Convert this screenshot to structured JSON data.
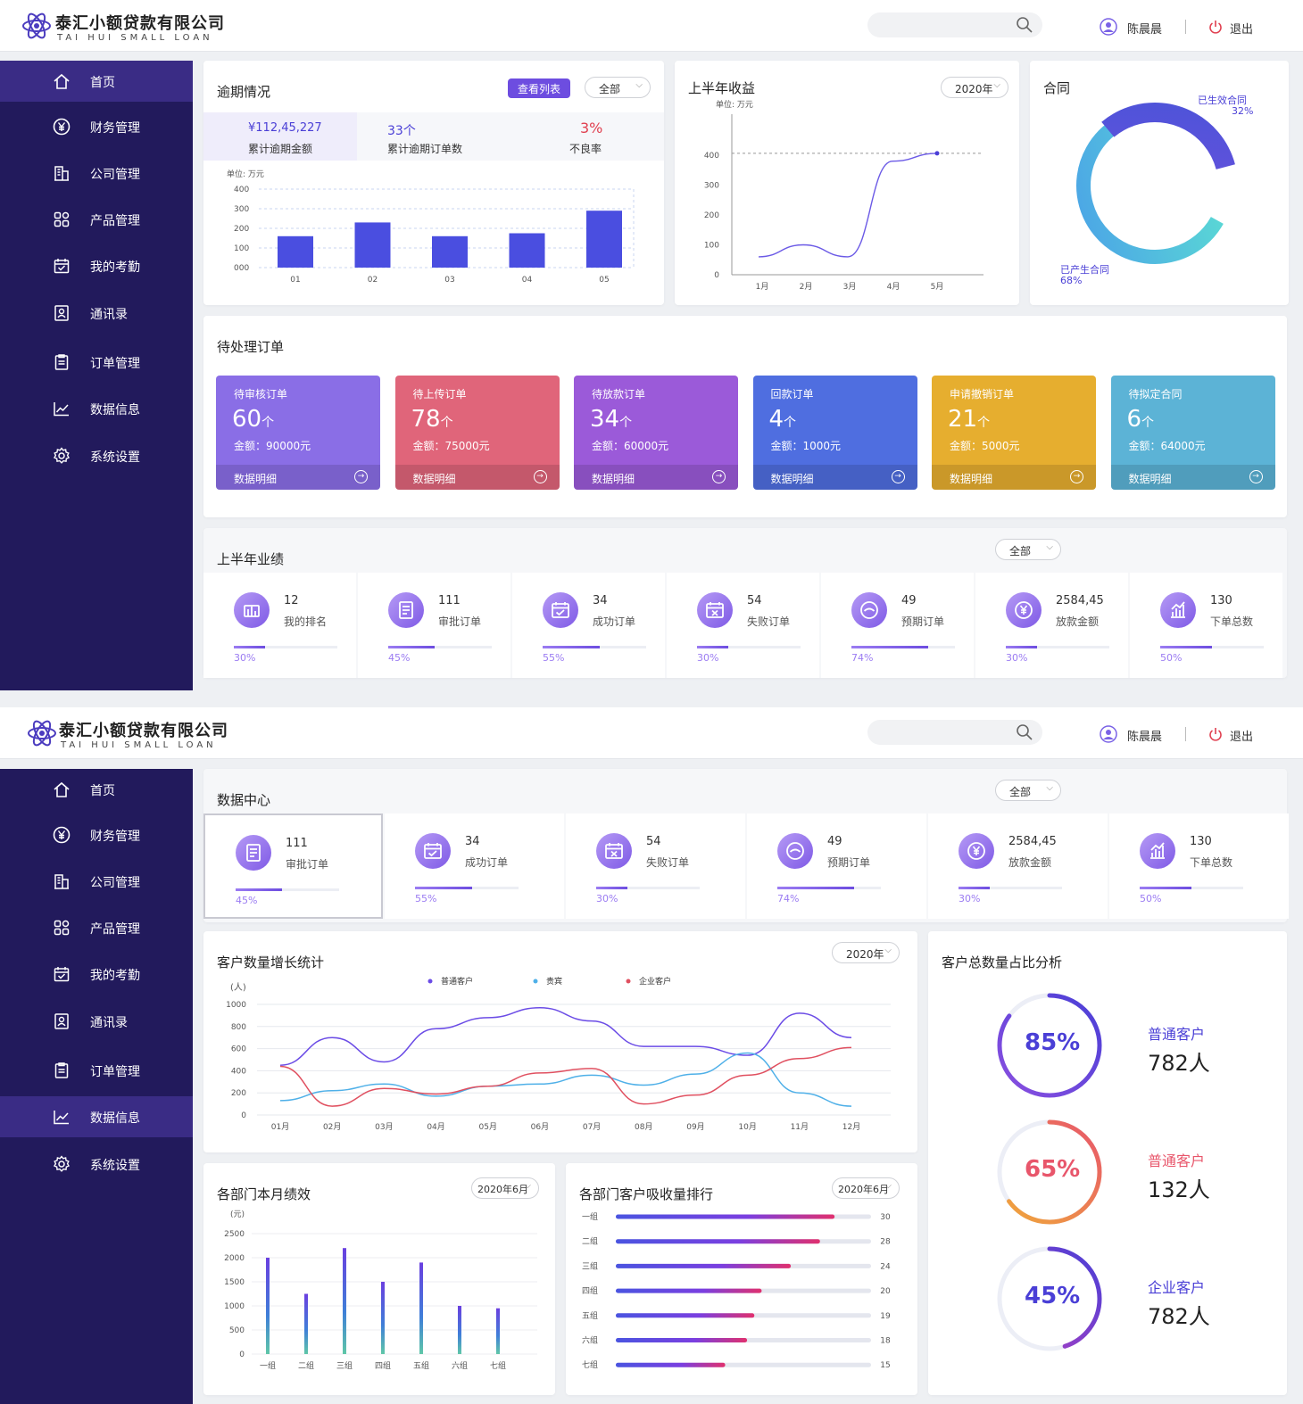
{
  "company": {
    "name_cn": "泰汇小额贷款有限公司",
    "name_en": "TAI HUI SMALL LOAN"
  },
  "user": {
    "name": "陈晨晨",
    "logout": "退出"
  },
  "colors": {
    "sidebar": "#221a5c",
    "sidebar_active": "#3a2c85",
    "accent": "#6d4de0"
  },
  "nav": [
    {
      "label": "首页",
      "icon": "home-icon"
    },
    {
      "label": "财务管理",
      "icon": "yen-circle-icon"
    },
    {
      "label": "公司管理",
      "icon": "building-icon"
    },
    {
      "label": "产品管理",
      "icon": "grid-icon"
    },
    {
      "label": "我的考勤",
      "icon": "calendar-check-icon"
    },
    {
      "label": "通讯录",
      "icon": "contact-icon"
    },
    {
      "label": "订单管理",
      "icon": "clipboard-icon"
    },
    {
      "label": "数据信息",
      "icon": "line-chart-icon"
    },
    {
      "label": "系统设置",
      "icon": "gear-icon"
    }
  ],
  "overdue": {
    "title": "逾期情况",
    "list_button": "查看列表",
    "filter": "全部",
    "summary": [
      {
        "value": "¥112,45,227",
        "label": "累计逾期金额"
      },
      {
        "value": "33个",
        "label": "累计逾期订单数"
      },
      {
        "value": "3%",
        "label": "不良率"
      }
    ],
    "unit": "单位: 万元"
  },
  "income": {
    "title": "上半年收益",
    "filter": "2020年",
    "unit": "单位: 万元"
  },
  "contract": {
    "title": "合同",
    "effective_label": "已生效合同",
    "effective_pct": "32%",
    "generated_label": "已产生合同",
    "generated_pct": "68%"
  },
  "pending": {
    "title": "待处理订单",
    "detail_label": "数据明细",
    "items": [
      {
        "title": "待审核订单",
        "count": "60",
        "unit": "个",
        "amount": "金额：90000元",
        "color": "#8a6ee6"
      },
      {
        "title": "待上传订单",
        "count": "78",
        "unit": "个",
        "amount": "金额：75000元",
        "color": "#e0657a"
      },
      {
        "title": "待放款订单",
        "count": "34",
        "unit": "个",
        "amount": "金额：60000元",
        "color": "#9b5ad9"
      },
      {
        "title": "回款订单",
        "count": "4",
        "unit": "个",
        "amount": "金额：1000元",
        "color": "#4f6ee0"
      },
      {
        "title": "申请撤销订单",
        "count": "21",
        "unit": "个",
        "amount": "金额：5000元",
        "color": "#e6ae2f"
      },
      {
        "title": "待拟定合同",
        "count": "6",
        "unit": "个",
        "amount": "金额：64000元",
        "color": "#5cb3d6"
      }
    ]
  },
  "performance": {
    "title": "上半年业绩",
    "filter": "全部",
    "items": [
      {
        "value": "12",
        "label": "我的排名",
        "pct": "30%",
        "ratio": 0.3,
        "icon": "ranking-icon"
      },
      {
        "value": "111",
        "label": "审批订单",
        "pct": "45%",
        "ratio": 0.45,
        "icon": "approve-doc-icon"
      },
      {
        "value": "34",
        "label": "成功订单",
        "pct": "55%",
        "ratio": 0.55,
        "icon": "success-calendar-icon"
      },
      {
        "value": "54",
        "label": "失败订单",
        "pct": "30%",
        "ratio": 0.3,
        "icon": "fail-calendar-icon"
      },
      {
        "value": "49",
        "label": "预期订单",
        "pct": "74%",
        "ratio": 0.74,
        "icon": "expect-icon"
      },
      {
        "value": "2584,45",
        "label": "放款金额",
        "pct": "30%",
        "ratio": 0.3,
        "icon": "yen-icon"
      },
      {
        "value": "130",
        "label": "下单总数",
        "pct": "50%",
        "ratio": 0.5,
        "icon": "bar-stat-icon"
      }
    ]
  },
  "data_center": {
    "title": "数据中心",
    "filter": "全部",
    "items": [
      {
        "value": "111",
        "label": "审批订单",
        "pct": "45%",
        "ratio": 0.45,
        "icon": "approve-doc-icon"
      },
      {
        "value": "34",
        "label": "成功订单",
        "pct": "55%",
        "ratio": 0.55,
        "icon": "success-calendar-icon"
      },
      {
        "value": "54",
        "label": "失败订单",
        "pct": "30%",
        "ratio": 0.3,
        "icon": "fail-calendar-icon"
      },
      {
        "value": "49",
        "label": "预期订单",
        "pct": "74%",
        "ratio": 0.74,
        "icon": "expect-icon"
      },
      {
        "value": "2584,45",
        "label": "放款金额",
        "pct": "30%",
        "ratio": 0.3,
        "icon": "yen-icon"
      },
      {
        "value": "130",
        "label": "下单总数",
        "pct": "50%",
        "ratio": 0.5,
        "icon": "bar-stat-icon"
      }
    ]
  },
  "customer_growth": {
    "title": "客户数量增长统计",
    "filter": "2020年"
  },
  "customer_share": {
    "title": "客户总数量占比分析",
    "items": [
      {
        "pct": "85%",
        "ratio": 0.85,
        "label": "普通客户",
        "count": "782人",
        "color": "#4a3fd6",
        "color2": "#8a4fe0"
      },
      {
        "pct": "65%",
        "ratio": 0.65,
        "label": "普通客户",
        "count": "132人",
        "color": "#e8566b",
        "color2": "#f0a93a"
      },
      {
        "pct": "45%",
        "ratio": 0.45,
        "label": "企业客户",
        "count": "782人",
        "color": "#4a3fd6",
        "color2": "#b43fc0"
      }
    ]
  },
  "dept_perf": {
    "title": "各部门本月绩效",
    "filter": "2020年6月"
  },
  "dept_rank": {
    "title": "各部门客户吸收量排行",
    "filter": "2020年6月"
  },
  "chart_data": [
    {
      "type": "bar",
      "title": "",
      "ylabel": "单位: 万元",
      "categories": [
        "01",
        "02",
        "03",
        "04",
        "05"
      ],
      "values": [
        160,
        230,
        160,
        175,
        290
      ],
      "ylim": [
        0,
        400
      ],
      "yticks": [
        "000",
        "100",
        "200",
        "300",
        "400"
      ],
      "grid": true
    },
    {
      "type": "line",
      "title": "",
      "ylabel": "单位: 万元",
      "categories": [
        "1月",
        "2月",
        "3月",
        "4月",
        "5月"
      ],
      "values": [
        60,
        100,
        60,
        380,
        460
      ],
      "ylim": [
        0,
        460
      ],
      "yticks": [
        "0",
        "100",
        "200",
        "300",
        "400"
      ]
    },
    {
      "type": "pie",
      "labels": [
        "已生效合同",
        "已产生合同"
      ],
      "values": [
        32,
        68
      ]
    },
    {
      "type": "line",
      "title": "",
      "ylabel": "(人)",
      "categories": [
        "01月",
        "02月",
        "03月",
        "04月",
        "05月",
        "06月",
        "07月",
        "08月",
        "09月",
        "10月",
        "11月",
        "12月"
      ],
      "series": [
        {
          "name": "普通客户",
          "color": "#6b4ce6",
          "values": [
            450,
            700,
            480,
            780,
            880,
            970,
            850,
            620,
            620,
            540,
            920,
            700
          ]
        },
        {
          "name": "贵宾",
          "color": "#4fb0e8",
          "values": [
            130,
            220,
            280,
            170,
            260,
            280,
            360,
            270,
            370,
            560,
            200,
            80
          ]
        },
        {
          "name": "企业客户",
          "color": "#e05060",
          "values": [
            440,
            80,
            240,
            190,
            260,
            380,
            420,
            100,
            180,
            360,
            510,
            610
          ]
        }
      ],
      "ylim": [
        0,
        1000
      ],
      "yticks": [
        "0",
        "200",
        "400",
        "600",
        "800",
        "1000"
      ]
    },
    {
      "type": "bar",
      "title": "",
      "ylabel": "(元)",
      "categories": [
        "一组",
        "二组",
        "三组",
        "四组",
        "五组",
        "六组",
        "七组"
      ],
      "values": [
        2000,
        1250,
        2200,
        1500,
        1900,
        1000,
        950
      ],
      "ylim": [
        0,
        2500
      ],
      "yticks": [
        "0",
        "500",
        "1000",
        "1500",
        "2000",
        "2500"
      ]
    },
    {
      "type": "bar",
      "title": "",
      "categories": [
        "一组",
        "二组",
        "三组",
        "四组",
        "五组",
        "六组",
        "七组"
      ],
      "values": [
        30,
        28,
        24,
        20,
        19,
        18,
        15
      ],
      "xlim": [
        0,
        35
      ]
    }
  ]
}
